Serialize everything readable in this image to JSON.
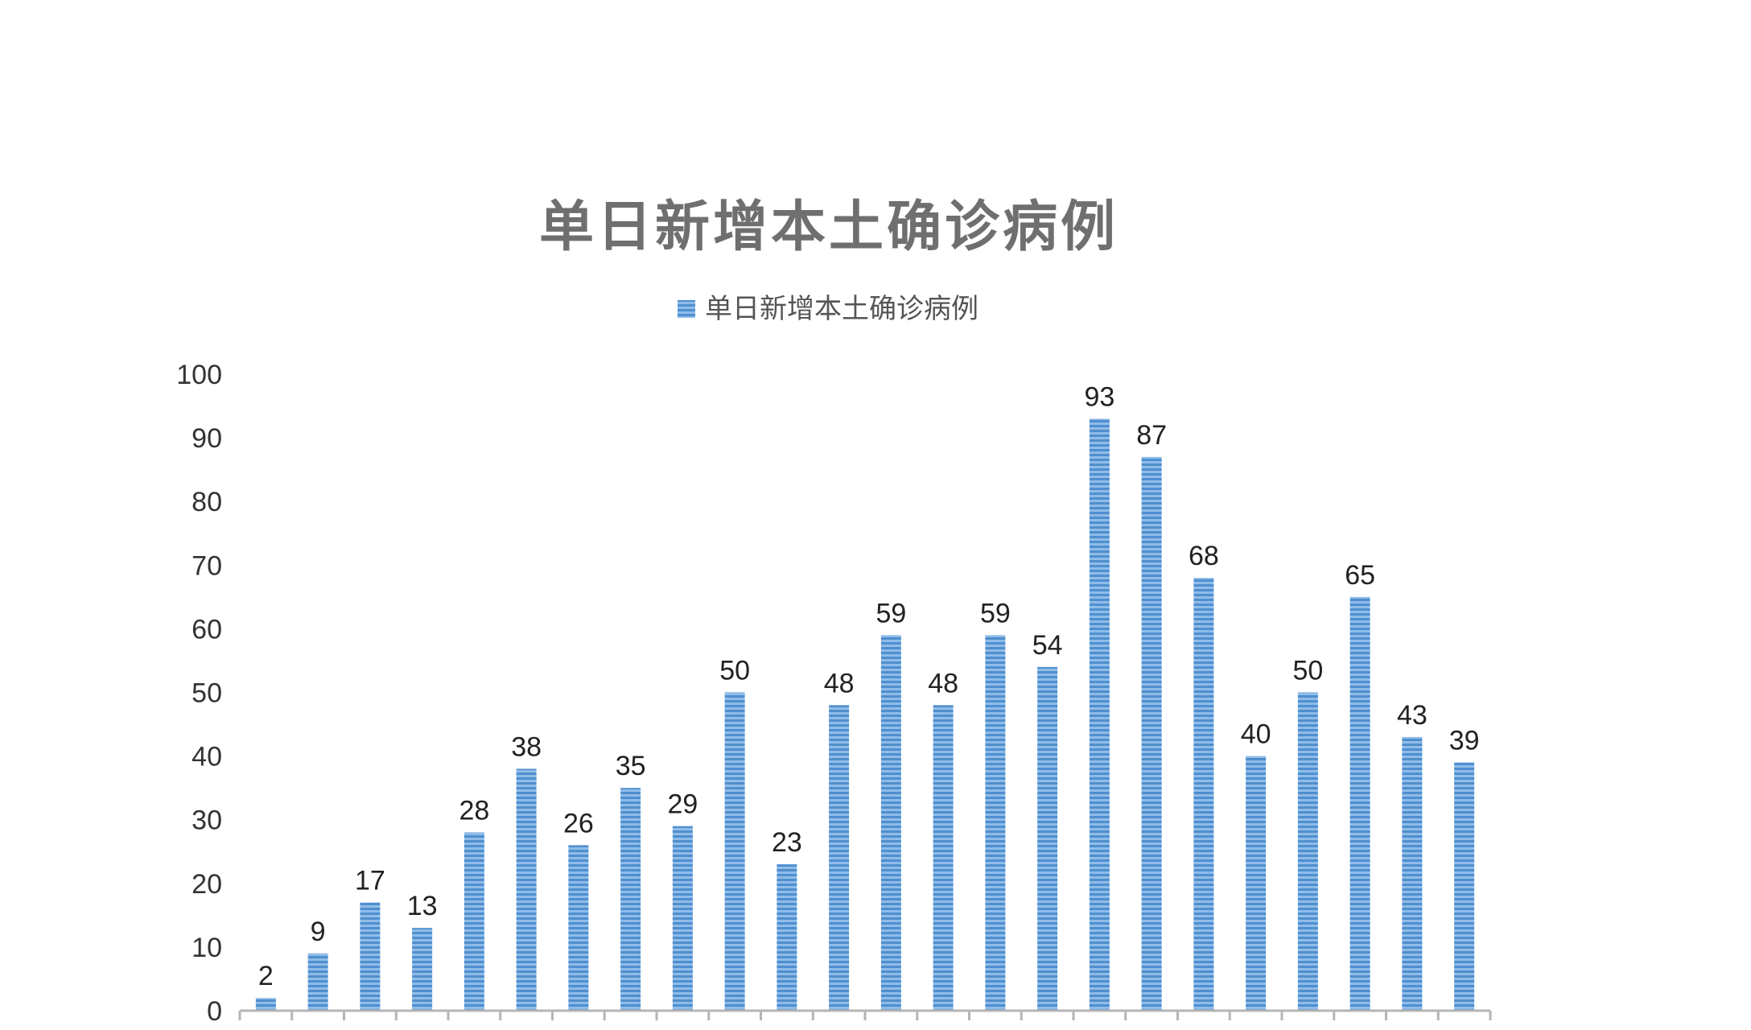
{
  "chart_data": {
    "type": "bar",
    "title": "单日新增本土确诊病例",
    "legend": {
      "position": "top",
      "entries": [
        "单日新增本土确诊病例"
      ]
    },
    "categories": [
      "",
      "",
      "",
      "",
      "",
      "",
      "",
      "",
      "",
      "",
      "",
      "",
      "",
      "",
      "",
      "",
      "",
      "",
      "",
      "",
      "",
      "",
      "",
      ""
    ],
    "series": [
      {
        "name": "单日新增本土确诊病例",
        "color": "#5b9bd5",
        "values": [
          2,
          9,
          17,
          13,
          28,
          38,
          26,
          35,
          29,
          50,
          23,
          48,
          59,
          48,
          59,
          54,
          93,
          87,
          68,
          40,
          50,
          65,
          43,
          39
        ]
      }
    ],
    "ylim": [
      0,
      100
    ],
    "yticks": [
      0,
      10,
      20,
      30,
      40,
      50,
      60,
      70,
      80,
      90,
      100
    ],
    "grid": false,
    "data_labels": true,
    "xlabel": "",
    "ylabel": ""
  }
}
